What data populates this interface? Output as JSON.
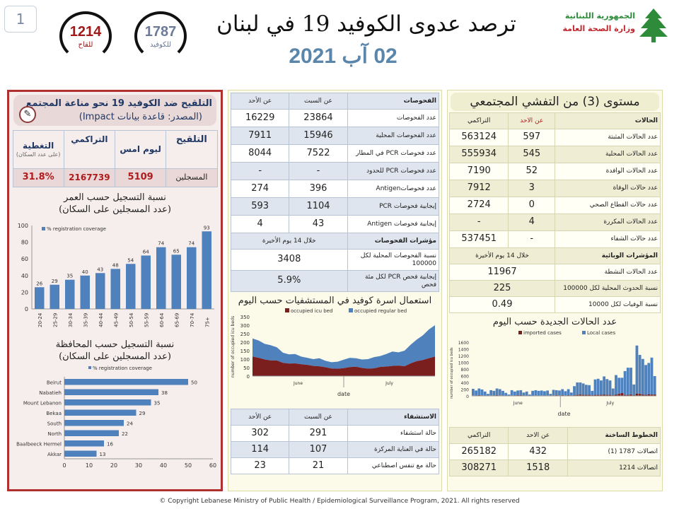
{
  "page_number": "1",
  "hotlines": [
    {
      "number": "1214",
      "label": "للقاح",
      "color": "#a01818"
    },
    {
      "number": "1787",
      "label": "للكوفيد",
      "color": "#6b7a9a"
    }
  ],
  "header": {
    "title": "ترصد عدوى الكوفيد 19 في لبنان",
    "date": "02 آب 2021",
    "logo_line1": "الجمهورية اللبنانية",
    "logo_line2": "وزارة الصحة العامة"
  },
  "vaccination": {
    "title": "التلقيح ضد الكوفيد 19  نحو مناعة المجتمع",
    "source": "(المصدر: قاعدة بيانات Impact)",
    "headers": [
      "التلقيح",
      "ليوم امس",
      "التراكمي",
      "التغطية"
    ],
    "coverage_note": "(على عدد السكان)",
    "row": {
      "label": "المسجلين",
      "yesterday": "5109",
      "cumulative": "2167739",
      "coverage": "31.8%"
    }
  },
  "age_chart": {
    "title1": "نسبة التسجيل حسب العمر",
    "title2": "(عدد المسجلين على السكان)"
  },
  "gov_chart": {
    "title1": "نسبة التسجيل حسب المحافظة",
    "title2": "(عدد المسجلين على السكان)"
  },
  "tests": {
    "headers": [
      "الفحوصات",
      "عن السبت",
      "عن الأحد"
    ],
    "rows": [
      [
        "عدد الفحوصات",
        "23864",
        "16229"
      ],
      [
        "عدد الفحوصات المحلية",
        "15946",
        "7911"
      ],
      [
        "عدد فحوصات PCR في المطار",
        "7522",
        "8044"
      ],
      [
        "عدد فحوصات PCR للحدود",
        "-",
        "-"
      ],
      [
        "عدد فحوصاتAntigen",
        "396",
        "274"
      ],
      [
        "إيجابية فحوصات PCR",
        "1104",
        "593"
      ],
      [
        "إيجابية فحوصات Antigen",
        "43",
        "4"
      ]
    ],
    "indicators_label": "مؤشرات الفحوصات",
    "indicators_period": "خلال 14 يوم الأخيرة",
    "indicators": [
      [
        "نسبة الفحوصات المحلية لكل 100000",
        "3408"
      ],
      [
        "إيجابية فحص PCR لكل مئة فحص",
        "5.9%"
      ]
    ]
  },
  "beds_title": "استعمال اسرة كوفيد في المستشفيات حسب اليوم",
  "hospital": {
    "headers": [
      "الاستشفاء",
      "عن السبت",
      "عن الأحد"
    ],
    "rows": [
      [
        "حالة استشفاء",
        "291",
        "302"
      ],
      [
        "حالة في العناية المركزة",
        "107",
        "114"
      ],
      [
        "حالة مع تنفس اصطناعي",
        "21",
        "23"
      ]
    ]
  },
  "cases": {
    "level_title": "مستوى (3) من التفشي المجتمعي",
    "headers": [
      "الحالات",
      "عن الاحد",
      "التراكمي"
    ],
    "rows": [
      [
        "عدد الحالات المثبتة",
        "597",
        "563124"
      ],
      [
        "عدد الحالات المحلية",
        "545",
        "555934"
      ],
      [
        "عدد الحالات الوافدة",
        "52",
        "7190"
      ],
      [
        "عدد حالات الوفاة",
        "3",
        "7912"
      ],
      [
        "عدد حالات القطاع الصحي",
        "0",
        "2724"
      ],
      [
        "عدد الحالات المكررة",
        "4",
        "-"
      ],
      [
        "عدد حالات الشفاء",
        "-",
        "537451"
      ]
    ],
    "indicators_label": "المؤشرات الوبائية",
    "indicators_period": "خلال 14 يوم الأخيرة",
    "indicators": [
      [
        "عدد الحالات النشطة",
        "11967"
      ],
      [
        "نسبة الحدوث المحلية لكل 100000",
        "225"
      ],
      [
        "نسبة الوفيات لكل 10000",
        "0.49"
      ]
    ]
  },
  "new_cases_title": "عدد الحالات الجديدة حسب اليوم",
  "hotline_table": {
    "headers": [
      "الخطوط الساخنة",
      "عن الاحد",
      "التراكمي"
    ],
    "rows": [
      [
        "اتصالات 1787 (1)",
        "432",
        "265182"
      ],
      [
        "اتصالات 1214",
        "1518",
        "308271"
      ]
    ]
  },
  "footer": "© Copyright Lebanese Ministry of Public Health / Epidemiological Surveillance Program, 2021. All rights reserved",
  "chart_data": [
    {
      "type": "bar",
      "id": "age",
      "legend": "% registration coverage",
      "categories": [
        "20-24",
        "25-29",
        "30-34",
        "35-39",
        "40-44",
        "45-49",
        "50-54",
        "55-59",
        "60-64",
        "65-69",
        "70-74",
        "75+"
      ],
      "values": [
        26,
        29,
        35,
        40,
        43,
        48,
        54,
        64,
        74,
        65,
        74,
        93
      ],
      "ylim": [
        0,
        100
      ],
      "yticks": [
        0,
        20,
        40,
        60,
        80,
        100
      ],
      "color": "#4f81bd"
    },
    {
      "type": "bar",
      "id": "gov",
      "orientation": "horizontal",
      "legend": "% registration coverage",
      "categories": [
        "Beirut",
        "Nabatieh",
        "Mount Lebanon",
        "Bekaa",
        "South",
        "North",
        "Baalbeeck Hermel",
        "Akkar"
      ],
      "values": [
        50,
        38,
        35,
        29,
        24,
        22,
        16,
        13
      ],
      "xlim": [
        0,
        60
      ],
      "xticks": [
        0,
        10,
        20,
        30,
        40,
        50,
        60
      ],
      "color": "#4f81bd"
    },
    {
      "type": "area",
      "id": "beds",
      "ylabel": "number of occupied icu beds",
      "xlabel": "date",
      "months": [
        "June",
        "July"
      ],
      "ylim": [
        0,
        350
      ],
      "yticks": [
        0,
        50,
        100,
        150,
        200,
        250,
        300,
        350
      ],
      "series": [
        {
          "name": "occupied icu bed",
          "color": "#7b1e1e",
          "values": [
            115,
            108,
            98,
            92,
            92,
            78,
            74,
            75,
            70,
            66,
            60,
            58,
            52,
            45,
            43,
            47,
            53,
            55,
            48,
            44,
            46,
            54,
            56,
            60,
            62,
            58,
            75,
            88,
            95,
            105,
            115
          ]
        },
        {
          "name": "occupied regular bed",
          "color": "#4f81bd",
          "values": [
            107,
            102,
            92,
            90,
            78,
            60,
            54,
            55,
            45,
            42,
            40,
            47,
            38,
            37,
            42,
            50,
            55,
            50,
            50,
            56,
            66,
            64,
            74,
            85,
            78,
            92,
            110,
            127,
            145,
            170,
            185
          ]
        }
      ]
    },
    {
      "type": "bar",
      "stacked": true,
      "id": "newcases",
      "ylabel": "number of occupied icu beds",
      "xlabel": "date",
      "months": [
        "June",
        "July"
      ],
      "ylim": [
        0,
        1600
      ],
      "yticks": [
        0,
        200,
        400,
        600,
        800,
        1000,
        1200,
        1400,
        1600
      ],
      "series": [
        {
          "name": "imported cases",
          "color": "#7b1e1e",
          "values": [
            15,
            10,
            20,
            15,
            10,
            5,
            15,
            10,
            20,
            15,
            10,
            5,
            5,
            15,
            10,
            20,
            20,
            10,
            10,
            5,
            10,
            15,
            10,
            15,
            10,
            15,
            5,
            15,
            20,
            15,
            20,
            15,
            20,
            10,
            20,
            30,
            40,
            30,
            30,
            30,
            20,
            30,
            30,
            30,
            40,
            30,
            30,
            20,
            40,
            60,
            90,
            30,
            30,
            40,
            20,
            70,
            60,
            40,
            30,
            50,
            40,
            40
          ]
        },
        {
          "name": "Local cases",
          "color": "#4f81bd",
          "values": [
            195,
            150,
            200,
            175,
            120,
            55,
            155,
            140,
            200,
            185,
            140,
            85,
            35,
            155,
            120,
            140,
            150,
            90,
            120,
            35,
            140,
            155,
            140,
            145,
            130,
            145,
            55,
            165,
            150,
            145,
            180,
            125,
            180,
            90,
            270,
            370,
            360,
            340,
            300,
            290,
            130,
            460,
            480,
            430,
            540,
            470,
            430,
            200,
            580,
            480,
            450,
            710,
            810,
            800,
            320,
            1430,
            1160,
            1060,
            890,
            930,
            1100,
            550
          ]
        }
      ]
    }
  ]
}
